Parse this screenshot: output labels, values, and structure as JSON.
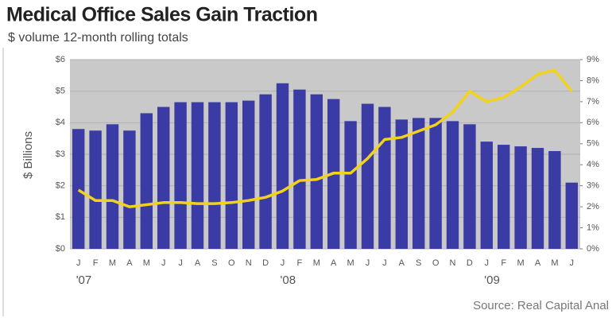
{
  "chart_data": {
    "type": "bar_line",
    "title": "Medical Office Sales Gain Traction",
    "subtitle": "$ volume 12-month rolling totals",
    "y_label": "$ Billions",
    "source": "Source: Real Capital Anal",
    "categories": [
      "J",
      "F",
      "M",
      "A",
      "M",
      "J",
      "J",
      "A",
      "S",
      "O",
      "N",
      "D",
      "J",
      "F",
      "M",
      "A",
      "M",
      "J",
      "J",
      "A",
      "S",
      "O",
      "N",
      "D",
      "J",
      "F",
      "M",
      "A",
      "M",
      "J"
    ],
    "year_labels": [
      "'07",
      null,
      null,
      null,
      null,
      null,
      null,
      null,
      null,
      null,
      null,
      null,
      "'08",
      null,
      null,
      null,
      null,
      null,
      null,
      null,
      null,
      null,
      null,
      null,
      "'09",
      null,
      null,
      null,
      null,
      null
    ],
    "series": [
      {
        "type": "bar",
        "color": "#3b3ba6",
        "values": [
          3.8,
          3.75,
          3.95,
          3.75,
          4.3,
          4.5,
          4.65,
          4.65,
          4.65,
          4.65,
          4.7,
          4.9,
          5.25,
          5.05,
          4.9,
          4.75,
          4.05,
          4.6,
          4.5,
          4.1,
          4.15,
          4.15,
          4.05,
          3.95,
          3.4,
          3.3,
          3.25,
          3.2,
          3.1,
          2.1
        ]
      },
      {
        "type": "line",
        "axis": "y2",
        "color": "#f2d21a",
        "values": [
          2.8,
          2.3,
          2.3,
          2.0,
          2.1,
          2.2,
          2.2,
          2.15,
          2.15,
          2.2,
          2.3,
          2.45,
          2.75,
          3.25,
          3.3,
          3.6,
          3.6,
          4.3,
          5.2,
          5.3,
          5.6,
          5.9,
          6.5,
          7.5,
          7.0,
          7.2,
          7.7,
          8.3,
          8.5,
          7.5
        ]
      }
    ],
    "ylim": [
      0,
      6
    ],
    "yticks": [
      {
        "value": 0,
        "label": "$0"
      },
      {
        "value": 1,
        "label": "$1"
      },
      {
        "value": 2,
        "label": "$2"
      },
      {
        "value": 3,
        "label": "$3"
      },
      {
        "value": 4,
        "label": "$4"
      },
      {
        "value": 5,
        "label": "$5"
      },
      {
        "value": 6,
        "label": "$6"
      }
    ],
    "y2lim": [
      0,
      9
    ],
    "y2ticks": [
      {
        "value": 0,
        "label": "0%"
      },
      {
        "value": 1,
        "label": "1%"
      },
      {
        "value": 2,
        "label": "2%"
      },
      {
        "value": 3,
        "label": "3%"
      },
      {
        "value": 4,
        "label": "4%"
      },
      {
        "value": 5,
        "label": "5%"
      },
      {
        "value": 6,
        "label": "6%"
      },
      {
        "value": 7,
        "label": "7%"
      },
      {
        "value": 8,
        "label": "8%"
      },
      {
        "value": 9,
        "label": "9%"
      }
    ],
    "grid": true,
    "plot_background": "#c9c9c9"
  }
}
